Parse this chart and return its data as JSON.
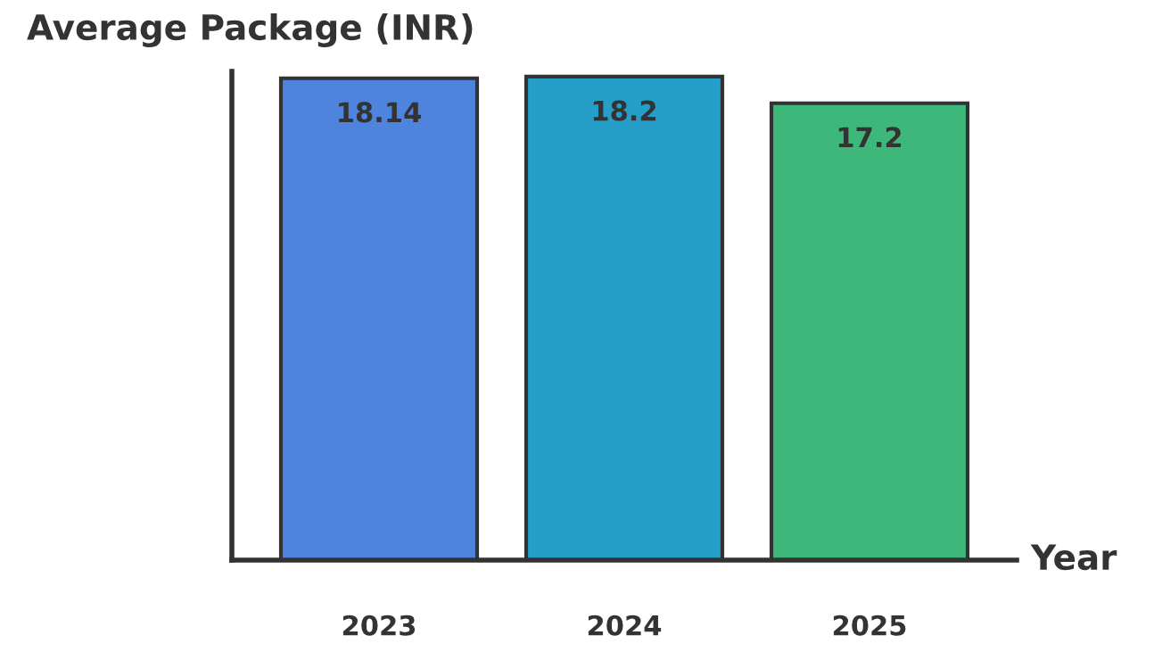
{
  "chart_data": {
    "type": "bar",
    "title": "Average Package (INR)",
    "xlabel": "Year",
    "categories": [
      "2023",
      "2024",
      "2025"
    ],
    "values": [
      18.14,
      18.2,
      17.2
    ],
    "colors": [
      "#4f84de",
      "#259fc9",
      "#3db87a"
    ],
    "ylim": [
      0,
      18.4
    ],
    "data_labels": true,
    "tick_labels": "x",
    "grid": false,
    "legend": false
  }
}
